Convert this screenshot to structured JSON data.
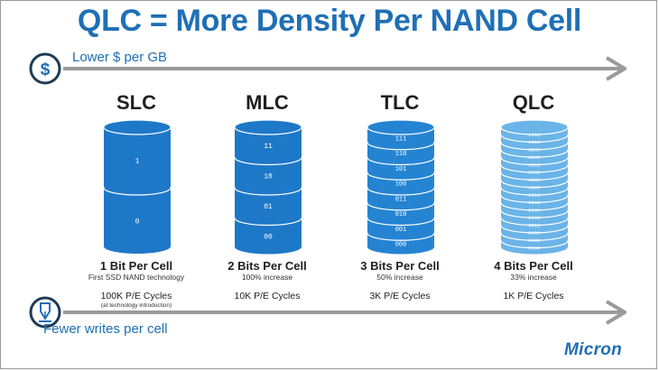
{
  "title": "QLC = More Density Per NAND Cell",
  "top_arrow": {
    "label": "Lower $ per GB",
    "icon": "dollar-icon"
  },
  "bottom_arrow": {
    "label": "Fewer writes per cell",
    "icon": "pen-icon"
  },
  "columns": [
    {
      "name": "SLC",
      "bits_label": "1 Bit Per Cell",
      "subtitle": "First SSD NAND technology",
      "cycles": "100K P/E Cycles",
      "note": "(at technology introduction)",
      "states": [
        "1",
        "0"
      ]
    },
    {
      "name": "MLC",
      "bits_label": "2 Bits Per Cell",
      "subtitle": "100% increase",
      "cycles": "10K P/E Cycles",
      "note": "",
      "states": [
        "11",
        "10",
        "01",
        "00"
      ]
    },
    {
      "name": "TLC",
      "bits_label": "3 Bits Per Cell",
      "subtitle": "50% increase",
      "cycles": "3K P/E Cycles",
      "note": "",
      "states": [
        "111",
        "110",
        "101",
        "100",
        "011",
        "010",
        "001",
        "000"
      ]
    },
    {
      "name": "QLC",
      "bits_label": "4 Bits Per Cell",
      "subtitle": "33% increase",
      "cycles": "1K P/E Cycles",
      "note": "",
      "states": [
        "1111",
        "1110",
        "1101",
        "1100",
        "1011",
        "1010",
        "1001",
        "1000",
        "0111",
        "0110",
        "0101",
        "0100",
        "0011",
        "0010",
        "0001",
        "0000"
      ]
    }
  ],
  "logo": "Micron",
  "colors": {
    "primary": "#1f6fb5",
    "arrow": "#9a9a9a",
    "qlc": "#66b0e6"
  }
}
